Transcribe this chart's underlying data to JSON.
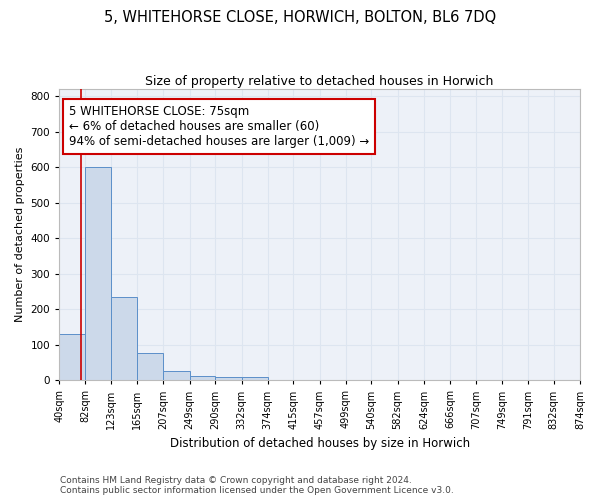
{
  "title": "5, WHITEHORSE CLOSE, HORWICH, BOLTON, BL6 7DQ",
  "subtitle": "Size of property relative to detached houses in Horwich",
  "xlabel": "Distribution of detached houses by size in Horwich",
  "ylabel": "Number of detached properties",
  "bin_edges": [
    40,
    82,
    123,
    165,
    207,
    249,
    290,
    332,
    374,
    415,
    457,
    499,
    540,
    582,
    624,
    666,
    707,
    749,
    791,
    832,
    874
  ],
  "bar_heights": [
    130,
    600,
    235,
    78,
    25,
    12,
    9,
    10,
    0,
    0,
    0,
    0,
    0,
    0,
    0,
    0,
    0,
    0,
    0,
    0
  ],
  "bar_color": "#ccd9ea",
  "bar_edge_color": "#5b8fc9",
  "grid_color": "#dde5f0",
  "background_color": "#edf1f8",
  "property_size": 75,
  "annotation_line1": "5 WHITEHORSE CLOSE: 75sqm",
  "annotation_line2": "← 6% of detached houses are smaller (60)",
  "annotation_line3": "94% of semi-detached houses are larger (1,009) →",
  "annotation_box_color": "#cc0000",
  "vline_color": "#cc0000",
  "ylim": [
    0,
    820
  ],
  "yticks": [
    0,
    100,
    200,
    300,
    400,
    500,
    600,
    700,
    800
  ],
  "footer_text": "Contains HM Land Registry data © Crown copyright and database right 2024.\nContains public sector information licensed under the Open Government Licence v3.0.",
  "title_fontsize": 10.5,
  "subtitle_fontsize": 9,
  "xlabel_fontsize": 8.5,
  "ylabel_fontsize": 8,
  "tick_label_fontsize": 7,
  "annotation_fontsize": 8.5,
  "footer_fontsize": 6.5
}
